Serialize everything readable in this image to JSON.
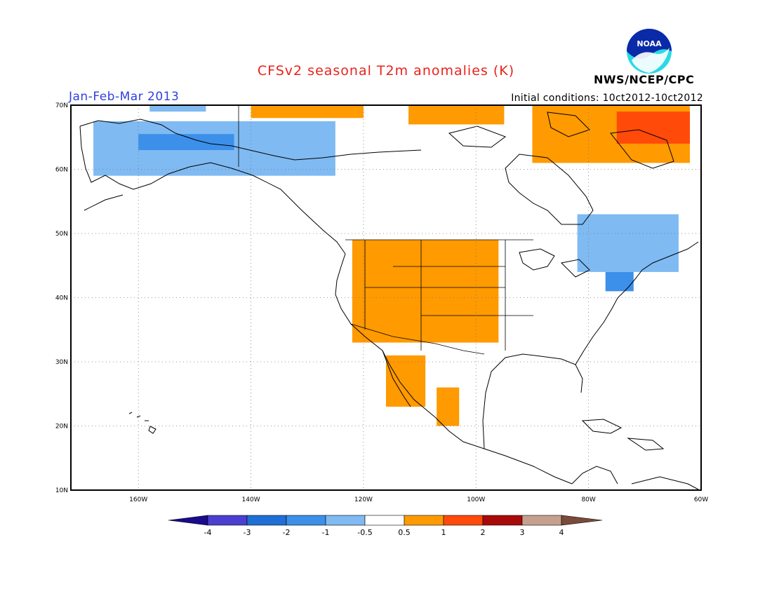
{
  "header": {
    "title": "CFSv2 seasonal T2m anomalies (K)",
    "period": "Jan-Feb-Mar 2013",
    "initial_conditions": "Initial conditions: 10ct2012-10ct2012",
    "agency": "NWS/NCEP/CPC",
    "logo_text": "NOAA"
  },
  "map": {
    "lon_range": [
      -172,
      -60
    ],
    "lat_range": [
      10,
      70
    ],
    "lon_ticks": [
      {
        "lon": -160,
        "label": "160W"
      },
      {
        "lon": -140,
        "label": "140W"
      },
      {
        "lon": -120,
        "label": "120W"
      },
      {
        "lon": -100,
        "label": "100W"
      },
      {
        "lon": -80,
        "label": "80W"
      },
      {
        "lon": -60,
        "label": "60W"
      }
    ],
    "lat_ticks": [
      {
        "lat": 10,
        "label": "10N"
      },
      {
        "lat": 20,
        "label": "20N"
      },
      {
        "lat": 30,
        "label": "30N"
      },
      {
        "lat": 40,
        "label": "40N"
      },
      {
        "lat": 50,
        "label": "50N"
      },
      {
        "lat": 60,
        "label": "60N"
      },
      {
        "lat": 70,
        "label": "70N"
      }
    ],
    "grid": "dotted"
  },
  "colorbar": {
    "labels": [
      "-4",
      "-3",
      "-2",
      "-1",
      "-0.5",
      "0.5",
      "1",
      "2",
      "3",
      "4"
    ],
    "colors": [
      "#1a0a8c",
      "#4a3fd0",
      "#1f6fd6",
      "#3c90ea",
      "#7fbaf2",
      "#ffffff",
      "#ff9a00",
      "#ff4a0a",
      "#a80a0a",
      "#c6a08e",
      "#7a4a3a"
    ]
  },
  "anomaly_regions": [
    {
      "name": "alaska",
      "color": "#7fbaf2",
      "lon": [
        -168,
        -125
      ],
      "lat": [
        59,
        67.5
      ]
    },
    {
      "name": "alaska-core",
      "color": "#3c90ea",
      "lon": [
        -160,
        -143
      ],
      "lat": [
        63,
        65.5
      ]
    },
    {
      "name": "north-slope",
      "color": "#7fbaf2",
      "lon": [
        -158,
        -148
      ],
      "lat": [
        69,
        70
      ]
    },
    {
      "name": "western-us",
      "color": "#ff9a00",
      "lon": [
        -122,
        -96
      ],
      "lat": [
        33,
        49
      ]
    },
    {
      "name": "baja",
      "color": "#ff9a00",
      "lon": [
        -116,
        -109
      ],
      "lat": [
        23,
        31
      ]
    },
    {
      "name": "mexico-central",
      "color": "#ff9a00",
      "lon": [
        -107,
        -103
      ],
      "lat": [
        20,
        26
      ]
    },
    {
      "name": "quebec",
      "color": "#7fbaf2",
      "lon": [
        -82,
        -64
      ],
      "lat": [
        44,
        53
      ]
    },
    {
      "name": "new-england",
      "color": "#3c90ea",
      "lon": [
        -77,
        -72
      ],
      "lat": [
        41,
        44
      ]
    },
    {
      "name": "canadian-arctic",
      "color": "#ff9a00",
      "lon": [
        -90,
        -62
      ],
      "lat": [
        61,
        70
      ]
    },
    {
      "name": "canadian-arctic-warm",
      "color": "#ff4a0a",
      "lon": [
        -75,
        -62
      ],
      "lat": [
        64,
        69
      ]
    },
    {
      "name": "yukon-coast",
      "color": "#ff9a00",
      "lon": [
        -140,
        -120
      ],
      "lat": [
        68,
        70
      ]
    },
    {
      "name": "nw-territories",
      "color": "#ff9a00",
      "lon": [
        -112,
        -95
      ],
      "lat": [
        67,
        70
      ]
    }
  ]
}
